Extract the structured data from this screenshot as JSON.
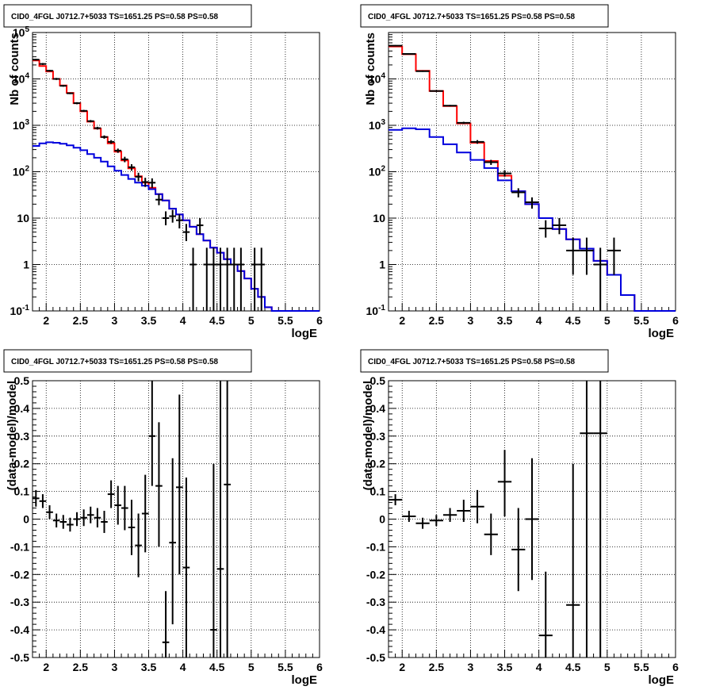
{
  "colors": {
    "data": "#000000",
    "total_model": "#ff0000",
    "source_model": "#0000dd",
    "grid": "#000000"
  },
  "chart_data": [
    {
      "type": "line",
      "title": "CID0_4FGL J0712.7+5033 TS=1651.25 PS=0.58 PS=0.58",
      "xlabel": "logE",
      "ylabel": "Nb of counts",
      "xlim": [
        1.8,
        6
      ],
      "ylim": [
        0.1,
        100000
      ],
      "yscale": "log",
      "grid": true,
      "xticks": [
        "2",
        "2.5",
        "3",
        "3.5",
        "4",
        "4.5",
        "5",
        "5.5",
        "6"
      ],
      "xtick_values": [
        2,
        2.5,
        3,
        3.5,
        4,
        4.5,
        5,
        5.5,
        6
      ],
      "yticks": [
        "10^-1",
        "1",
        "10",
        "10^2",
        "10^3",
        "10^4",
        "10^5"
      ],
      "ytick_values": [
        0.1,
        1,
        10,
        100,
        1000,
        10000,
        100000
      ],
      "bin_edges": [
        1.8,
        1.9,
        2.0,
        2.1,
        2.2,
        2.3,
        2.4,
        2.5,
        2.6,
        2.7,
        2.8,
        2.9,
        3.0,
        3.1,
        3.2,
        3.3,
        3.4,
        3.5,
        3.6,
        3.7,
        3.8,
        3.9,
        4.0,
        4.1,
        4.2,
        4.3,
        4.4,
        4.5,
        4.6,
        4.7,
        4.8,
        4.9,
        5.0,
        5.1,
        5.2,
        5.3,
        5.4,
        5.5,
        5.6,
        5.7,
        5.8,
        5.9,
        6.0
      ],
      "series": [
        {
          "values": [
            25000,
            19000,
            14500,
            10000,
            7200,
            5000,
            3000,
            2000,
            1200,
            850,
            560,
            410,
            270,
            175,
            118,
            80,
            58,
            45,
            33,
            24,
            16,
            12,
            9,
            6.5,
            4.5,
            3.3,
            2.3,
            1.8,
            1.3,
            1.0,
            0.72,
            0.5,
            0.3,
            0.2,
            0.12,
            0.1,
            0.1,
            0.1,
            0.1,
            0.1,
            0.1,
            0.1
          ],
          "style": "total"
        },
        {
          "values": [
            360,
            410,
            430,
            420,
            400,
            370,
            330,
            290,
            240,
            200,
            165,
            130,
            105,
            85,
            70,
            58,
            50,
            42,
            33,
            24,
            16,
            12,
            9,
            6.5,
            4.5,
            3.3,
            2.3,
            1.8,
            1.3,
            1.0,
            0.72,
            0.5,
            0.3,
            0.2,
            0.12,
            0.1,
            0.1,
            0.1,
            0.1,
            0.1,
            0.1,
            0.1
          ],
          "style": "source"
        }
      ],
      "points": [
        {
          "x": 1.85,
          "y": 26000,
          "xerr": 0.05,
          "ylo": 25000,
          "yhi": 27000
        },
        {
          "x": 1.95,
          "y": 21000,
          "xerr": 0.05,
          "ylo": 20000,
          "yhi": 22000
        },
        {
          "x": 2.05,
          "y": 15000,
          "xerr": 0.05,
          "ylo": 14400,
          "yhi": 15600
        },
        {
          "x": 2.15,
          "y": 10000,
          "xerr": 0.05,
          "ylo": 9500,
          "yhi": 10500
        },
        {
          "x": 2.25,
          "y": 7100,
          "xerr": 0.05,
          "ylo": 6800,
          "yhi": 7400
        },
        {
          "x": 2.35,
          "y": 4900,
          "xerr": 0.05,
          "ylo": 4700,
          "yhi": 5100
        },
        {
          "x": 2.45,
          "y": 3000,
          "xerr": 0.05,
          "ylo": 2850,
          "yhi": 3150
        },
        {
          "x": 2.55,
          "y": 2050,
          "xerr": 0.05,
          "ylo": 1950,
          "yhi": 2150
        },
        {
          "x": 2.65,
          "y": 1230,
          "xerr": 0.05,
          "ylo": 1160,
          "yhi": 1300
        },
        {
          "x": 2.75,
          "y": 870,
          "xerr": 0.05,
          "ylo": 810,
          "yhi": 930
        },
        {
          "x": 2.85,
          "y": 560,
          "xerr": 0.05,
          "ylo": 515,
          "yhi": 605
        },
        {
          "x": 2.95,
          "y": 440,
          "xerr": 0.05,
          "ylo": 400,
          "yhi": 480
        },
        {
          "x": 3.05,
          "y": 285,
          "xerr": 0.05,
          "ylo": 255,
          "yhi": 315
        },
        {
          "x": 3.15,
          "y": 185,
          "xerr": 0.05,
          "ylo": 160,
          "yhi": 210
        },
        {
          "x": 3.25,
          "y": 125,
          "xerr": 0.05,
          "ylo": 105,
          "yhi": 145
        },
        {
          "x": 3.35,
          "y": 78,
          "xerr": 0.05,
          "ylo": 62,
          "yhi": 95
        },
        {
          "x": 3.45,
          "y": 60,
          "xerr": 0.05,
          "ylo": 47,
          "yhi": 74
        },
        {
          "x": 3.55,
          "y": 58,
          "xerr": 0.05,
          "ylo": 45,
          "yhi": 72
        },
        {
          "x": 3.65,
          "y": 25,
          "xerr": 0.05,
          "ylo": 19,
          "yhi": 33
        },
        {
          "x": 3.75,
          "y": 10,
          "xerr": 0.05,
          "ylo": 7,
          "yhi": 14
        },
        {
          "x": 3.85,
          "y": 11,
          "xerr": 0.05,
          "ylo": 8,
          "yhi": 15
        },
        {
          "x": 3.95,
          "y": 9,
          "xerr": 0.05,
          "ylo": 6,
          "yhi": 12
        },
        {
          "x": 4.05,
          "y": 5,
          "xerr": 0.05,
          "ylo": 3.2,
          "yhi": 7.5
        },
        {
          "x": 4.15,
          "y": 1,
          "xerr": 0.05,
          "ylo": 0.1,
          "yhi": 2.3
        },
        {
          "x": 4.25,
          "y": 7,
          "xerr": 0.05,
          "ylo": 4.5,
          "yhi": 10
        },
        {
          "x": 4.35,
          "y": 1,
          "xerr": 0.05,
          "ylo": 0.1,
          "yhi": 2.3
        },
        {
          "x": 4.45,
          "y": 1,
          "xerr": 0.05,
          "ylo": 0.1,
          "yhi": 2.3
        },
        {
          "x": 4.55,
          "y": 1,
          "xerr": 0.05,
          "ylo": 0.1,
          "yhi": 2.3
        },
        {
          "x": 4.65,
          "y": 1,
          "xerr": 0.05,
          "ylo": 0.1,
          "yhi": 2.3
        },
        {
          "x": 4.75,
          "y": 1,
          "xerr": 0.05,
          "ylo": 0.1,
          "yhi": 2.3
        },
        {
          "x": 4.85,
          "y": 1,
          "xerr": 0.05,
          "ylo": 0.1,
          "yhi": 2.3
        },
        {
          "x": 5.05,
          "y": 1,
          "xerr": 0.05,
          "ylo": 0.1,
          "yhi": 2.3
        },
        {
          "x": 5.15,
          "y": 1,
          "xerr": 0.05,
          "ylo": 0.1,
          "yhi": 2.3
        }
      ]
    },
    {
      "type": "line",
      "title": "CID0_4FGL J0712.7+5033 TS=1651.25 PS=0.58 PS=0.58",
      "xlabel": "logE",
      "ylabel": "Nb of counts",
      "xlim": [
        1.8,
        6
      ],
      "ylim": [
        0.1,
        100000
      ],
      "yscale": "log",
      "grid": true,
      "xticks": [
        "2",
        "2.5",
        "3",
        "3.5",
        "4",
        "4.5",
        "5",
        "5.5",
        "6"
      ],
      "xtick_values": [
        2,
        2.5,
        3,
        3.5,
        4,
        4.5,
        5,
        5.5,
        6
      ],
      "yticks": [
        "10^-1",
        "1",
        "10",
        "10^2",
        "10^3",
        "10^4"
      ],
      "ytick_values": [
        0.1,
        1,
        10,
        100,
        1000,
        10000
      ],
      "bin_edges": [
        1.8,
        2.0,
        2.2,
        2.4,
        2.6,
        2.8,
        3.0,
        3.2,
        3.4,
        3.6,
        3.8,
        4.0,
        4.2,
        4.4,
        4.6,
        4.8,
        5.0,
        5.2,
        5.4,
        5.6,
        5.8,
        6.0
      ],
      "series": [
        {
          "values": [
            50000,
            34000,
            15000,
            5500,
            2600,
            1100,
            420,
            170,
            82,
            38,
            20,
            10,
            5.8,
            3.5,
            2.2,
            1.2,
            0.6,
            0.22,
            0.1,
            0.1,
            0.1
          ],
          "style": "total"
        },
        {
          "values": [
            800,
            860,
            820,
            560,
            390,
            260,
            180,
            120,
            65,
            38,
            20,
            10,
            5.8,
            3.5,
            2.2,
            1.2,
            0.6,
            0.22,
            0.1,
            0.1,
            0.1
          ],
          "style": "source"
        }
      ],
      "points": [
        {
          "x": 1.9,
          "y": 52000,
          "xerr": 0.1,
          "ylo": 50500,
          "yhi": 53500
        },
        {
          "x": 2.1,
          "y": 34500,
          "xerr": 0.1,
          "ylo": 33500,
          "yhi": 35500
        },
        {
          "x": 2.3,
          "y": 14700,
          "xerr": 0.1,
          "ylo": 14200,
          "yhi": 15200
        },
        {
          "x": 2.5,
          "y": 5500,
          "xerr": 0.1,
          "ylo": 5300,
          "yhi": 5700
        },
        {
          "x": 2.7,
          "y": 2650,
          "xerr": 0.1,
          "ylo": 2550,
          "yhi": 2750
        },
        {
          "x": 2.9,
          "y": 1130,
          "xerr": 0.1,
          "ylo": 1070,
          "yhi": 1190
        },
        {
          "x": 3.1,
          "y": 440,
          "xerr": 0.1,
          "ylo": 400,
          "yhi": 480
        },
        {
          "x": 3.3,
          "y": 160,
          "xerr": 0.1,
          "ylo": 140,
          "yhi": 180
        },
        {
          "x": 3.5,
          "y": 92,
          "xerr": 0.1,
          "ylo": 78,
          "yhi": 108
        },
        {
          "x": 3.7,
          "y": 36,
          "xerr": 0.1,
          "ylo": 28,
          "yhi": 44
        },
        {
          "x": 3.9,
          "y": 22,
          "xerr": 0.1,
          "ylo": 16,
          "yhi": 28
        },
        {
          "x": 4.1,
          "y": 6,
          "xerr": 0.1,
          "ylo": 3.8,
          "yhi": 9
        },
        {
          "x": 4.3,
          "y": 7,
          "xerr": 0.1,
          "ylo": 4.5,
          "yhi": 10
        },
        {
          "x": 4.5,
          "y": 2,
          "xerr": 0.1,
          "ylo": 0.6,
          "yhi": 3.8
        },
        {
          "x": 4.7,
          "y": 2,
          "xerr": 0.1,
          "ylo": 0.6,
          "yhi": 3.8
        },
        {
          "x": 4.9,
          "y": 1,
          "xerr": 0.1,
          "ylo": 0.1,
          "yhi": 2.3
        },
        {
          "x": 5.1,
          "y": 2,
          "xerr": 0.1,
          "ylo": 0.6,
          "yhi": 3.8
        }
      ]
    },
    {
      "type": "scatter",
      "title": "CID0_4FGL J0712.7+5033 TS=1651.25 PS=0.58 PS=0.58",
      "xlabel": "logE",
      "ylabel": "(data-model)/model",
      "xlim": [
        1.8,
        6
      ],
      "ylim": [
        -0.5,
        0.5
      ],
      "yscale": "linear",
      "grid": true,
      "xticks": [
        "2",
        "2.5",
        "3",
        "3.5",
        "4",
        "4.5",
        "5",
        "5.5",
        "6"
      ],
      "xtick_values": [
        2,
        2.5,
        3,
        3.5,
        4,
        4.5,
        5,
        5.5,
        6
      ],
      "yticks": [
        "-0.5",
        "-0.4",
        "-0.3",
        "-0.2",
        "-0.1",
        "0",
        "0.1",
        "0.2",
        "0.3",
        "0.4",
        "0.5"
      ],
      "ytick_values": [
        -0.5,
        -0.4,
        -0.3,
        -0.2,
        -0.1,
        0,
        0.1,
        0.2,
        0.3,
        0.4,
        0.5
      ],
      "points": [
        {
          "x": 1.85,
          "y": 0.075,
          "xerr": 0.05,
          "ylo": 0.045,
          "yhi": 0.105
        },
        {
          "x": 1.95,
          "y": 0.065,
          "xerr": 0.05,
          "ylo": 0.04,
          "yhi": 0.09
        },
        {
          "x": 2.05,
          "y": 0.025,
          "xerr": 0.05,
          "ylo": 0.0,
          "yhi": 0.05
        },
        {
          "x": 2.15,
          "y": -0.005,
          "xerr": 0.05,
          "ylo": -0.03,
          "yhi": 0.02
        },
        {
          "x": 2.25,
          "y": -0.01,
          "xerr": 0.05,
          "ylo": -0.035,
          "yhi": 0.015
        },
        {
          "x": 2.35,
          "y": -0.02,
          "xerr": 0.05,
          "ylo": -0.045,
          "yhi": 0.005
        },
        {
          "x": 2.45,
          "y": 0.0,
          "xerr": 0.05,
          "ylo": -0.025,
          "yhi": 0.025
        },
        {
          "x": 2.55,
          "y": 0.005,
          "xerr": 0.05,
          "ylo": -0.025,
          "yhi": 0.035
        },
        {
          "x": 2.65,
          "y": 0.015,
          "xerr": 0.05,
          "ylo": -0.015,
          "yhi": 0.045
        },
        {
          "x": 2.75,
          "y": 0.005,
          "xerr": 0.05,
          "ylo": -0.03,
          "yhi": 0.04
        },
        {
          "x": 2.85,
          "y": -0.01,
          "xerr": 0.05,
          "ylo": -0.05,
          "yhi": 0.03
        },
        {
          "x": 2.95,
          "y": 0.09,
          "xerr": 0.05,
          "ylo": 0.04,
          "yhi": 0.14
        },
        {
          "x": 3.05,
          "y": 0.05,
          "xerr": 0.05,
          "ylo": -0.02,
          "yhi": 0.12
        },
        {
          "x": 3.15,
          "y": 0.04,
          "xerr": 0.05,
          "ylo": -0.04,
          "yhi": 0.12
        },
        {
          "x": 3.25,
          "y": -0.03,
          "xerr": 0.05,
          "ylo": -0.13,
          "yhi": 0.07
        },
        {
          "x": 3.35,
          "y": -0.095,
          "xerr": 0.05,
          "ylo": -0.21,
          "yhi": 0.02
        },
        {
          "x": 3.45,
          "y": 0.02,
          "xerr": 0.05,
          "ylo": -0.12,
          "yhi": 0.16
        },
        {
          "x": 3.55,
          "y": 0.3,
          "xerr": 0.05,
          "ylo": 0.12,
          "yhi": 0.5
        },
        {
          "x": 3.65,
          "y": 0.12,
          "xerr": 0.05,
          "ylo": -0.1,
          "yhi": 0.35
        },
        {
          "x": 3.75,
          "y": -0.445,
          "xerr": 0.05,
          "ylo": -0.5,
          "yhi": -0.26
        },
        {
          "x": 3.85,
          "y": -0.085,
          "xerr": 0.05,
          "ylo": -0.38,
          "yhi": 0.22
        },
        {
          "x": 3.95,
          "y": 0.115,
          "xerr": 0.05,
          "ylo": -0.2,
          "yhi": 0.45
        },
        {
          "x": 4.05,
          "y": -0.175,
          "xerr": 0.05,
          "ylo": -0.5,
          "yhi": 0.15
        },
        {
          "x": 4.45,
          "y": -0.4,
          "xerr": 0.05,
          "ylo": -0.5,
          "yhi": 0.2
        },
        {
          "x": 4.55,
          "y": -0.18,
          "xerr": 0.05,
          "ylo": -0.5,
          "yhi": 0.5
        },
        {
          "x": 4.65,
          "y": 0.125,
          "xerr": 0.05,
          "ylo": -0.5,
          "yhi": 0.5
        }
      ]
    },
    {
      "type": "scatter",
      "title": "CID0_4FGL J0712.7+5033 TS=1651.25 PS=0.58 PS=0.58",
      "xlabel": "logE",
      "ylabel": "(data-model)/model",
      "xlim": [
        1.8,
        6
      ],
      "ylim": [
        -0.5,
        0.5
      ],
      "yscale": "linear",
      "grid": true,
      "xticks": [
        "2",
        "2.5",
        "3",
        "3.5",
        "4",
        "4.5",
        "5",
        "5.5",
        "6"
      ],
      "xtick_values": [
        2,
        2.5,
        3,
        3.5,
        4,
        4.5,
        5,
        5.5,
        6
      ],
      "yticks": [
        "-0.5",
        "-0.4",
        "-0.3",
        "-0.2",
        "-0.1",
        "0",
        "0.1",
        "0.2",
        "0.3",
        "0.4",
        "0.5"
      ],
      "ytick_values": [
        -0.5,
        -0.4,
        -0.3,
        -0.2,
        -0.1,
        0,
        0.1,
        0.2,
        0.3,
        0.4,
        0.5
      ],
      "points": [
        {
          "x": 1.9,
          "y": 0.07,
          "xerr": 0.1,
          "ylo": 0.05,
          "yhi": 0.09
        },
        {
          "x": 2.1,
          "y": 0.01,
          "xerr": 0.1,
          "ylo": -0.01,
          "yhi": 0.03
        },
        {
          "x": 2.3,
          "y": -0.015,
          "xerr": 0.1,
          "ylo": -0.035,
          "yhi": 0.005
        },
        {
          "x": 2.5,
          "y": -0.005,
          "xerr": 0.1,
          "ylo": -0.025,
          "yhi": 0.015
        },
        {
          "x": 2.7,
          "y": 0.015,
          "xerr": 0.1,
          "ylo": -0.01,
          "yhi": 0.04
        },
        {
          "x": 2.9,
          "y": 0.03,
          "xerr": 0.1,
          "ylo": -0.01,
          "yhi": 0.07
        },
        {
          "x": 3.1,
          "y": 0.045,
          "xerr": 0.1,
          "ylo": -0.015,
          "yhi": 0.105
        },
        {
          "x": 3.3,
          "y": -0.055,
          "xerr": 0.1,
          "ylo": -0.13,
          "yhi": 0.02
        },
        {
          "x": 3.5,
          "y": 0.135,
          "xerr": 0.1,
          "ylo": 0.01,
          "yhi": 0.25
        },
        {
          "x": 3.7,
          "y": -0.11,
          "xerr": 0.1,
          "ylo": -0.26,
          "yhi": 0.04
        },
        {
          "x": 3.9,
          "y": 0.0,
          "xerr": 0.1,
          "ylo": -0.22,
          "yhi": 0.22
        },
        {
          "x": 4.1,
          "y": -0.42,
          "xerr": 0.1,
          "ylo": -0.5,
          "yhi": -0.19
        },
        {
          "x": 4.5,
          "y": -0.31,
          "xerr": 0.1,
          "ylo": -0.5,
          "yhi": 0.2
        },
        {
          "x": 4.7,
          "y": 0.31,
          "xerr": 0.1,
          "ylo": -0.5,
          "yhi": 0.5
        },
        {
          "x": 4.9,
          "y": 0.31,
          "xerr": 0.1,
          "ylo": -0.5,
          "yhi": 0.5
        }
      ]
    }
  ]
}
